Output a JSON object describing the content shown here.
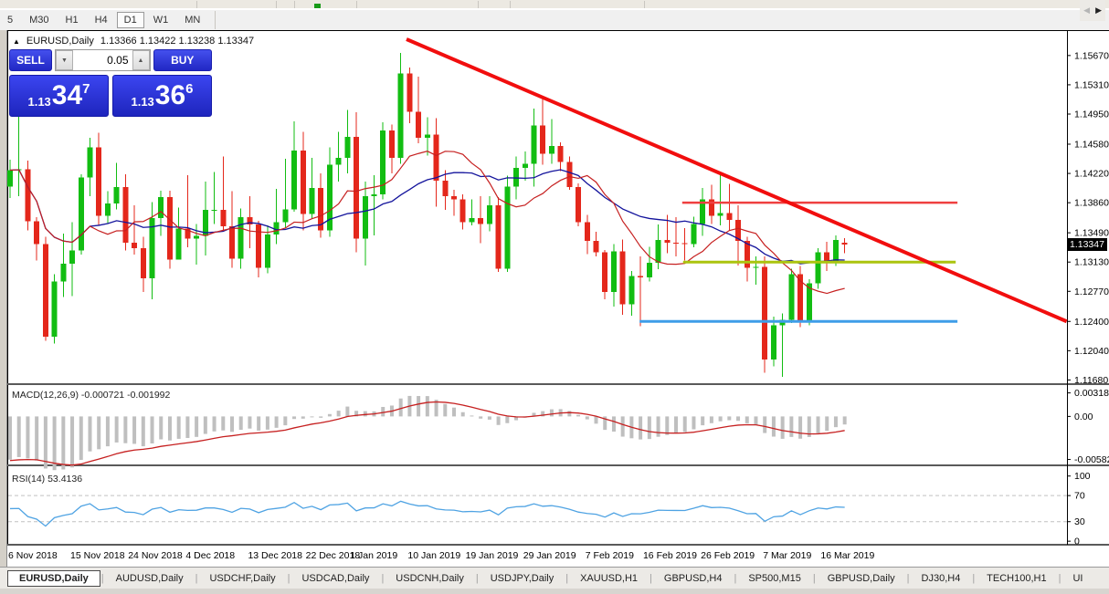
{
  "toolbar": {
    "timeframes": [
      "5",
      "M30",
      "H1",
      "H4",
      "D1",
      "W1",
      "MN"
    ],
    "active_timeframe": "D1"
  },
  "header": {
    "collapse_icon": "▲",
    "symbol": "EURUSD,Daily",
    "ohlc_text": "1.13366 1.13422 1.13238 1.13347"
  },
  "trade_panel": {
    "sell_label": "SELL",
    "buy_label": "BUY",
    "volume": "0.05",
    "spinner_down": "▼",
    "spinner_up": "▲",
    "sell_price": {
      "prefix": "1.13",
      "big": "34",
      "sup": "7"
    },
    "buy_price": {
      "prefix": "1.13",
      "big": "36",
      "sup": "6"
    }
  },
  "price_axis": {
    "ticks": [
      "1.15670",
      "1.15310",
      "1.14950",
      "1.14580",
      "1.14220",
      "1.13860",
      "1.13490",
      "1.13130",
      "1.12770",
      "1.12400",
      "1.12040",
      "1.11680"
    ],
    "tick_values": [
      1.1567,
      1.1531,
      1.1495,
      1.1458,
      1.1422,
      1.1386,
      1.1349,
      1.1313,
      1.1277,
      1.124,
      1.1204,
      1.1168
    ],
    "current_label": "1.13347",
    "current_value": 1.13347
  },
  "date_axis": {
    "labels": [
      {
        "text": "6 Nov 2018",
        "index": 0
      },
      {
        "text": "15 Nov 2018",
        "index": 7
      },
      {
        "text": "24 Nov 2018",
        "index": 13.5
      },
      {
        "text": "4 Dec 2018",
        "index": 20
      },
      {
        "text": "13 Dec 2018",
        "index": 27
      },
      {
        "text": "22 Dec 2018",
        "index": 33.5
      },
      {
        "text": "1 Jan 2019",
        "index": 38.5
      },
      {
        "text": "10 Jan 2019",
        "index": 45
      },
      {
        "text": "19 Jan 2019",
        "index": 51.5
      },
      {
        "text": "29 Jan 2019",
        "index": 58
      },
      {
        "text": "7 Feb 2019",
        "index": 65
      },
      {
        "text": "16 Feb 2019",
        "index": 71.5
      },
      {
        "text": "26 Feb 2019",
        "index": 78
      },
      {
        "text": "7 Mar 2019",
        "index": 85
      },
      {
        "text": "16 Mar 2019",
        "index": 91.5
      }
    ]
  },
  "indicators": {
    "macd": {
      "label": "MACD(12,26,9) -0.000721 -0.001992",
      "fast": 12,
      "slow": 26,
      "signal": 9,
      "value": -0.000721,
      "signal_value": -0.001992,
      "axis_ticks": [
        {
          "text": "0.003185",
          "value": 0.003185
        },
        {
          "text": "0.00",
          "value": 0
        },
        {
          "text": "-0.005827",
          "value": -0.005827
        }
      ]
    },
    "rsi": {
      "label": "RSI(14) 53.4136",
      "period": 14,
      "current": 53.4136,
      "levels": [
        70,
        30
      ],
      "axis_ticks": [
        {
          "text": "100",
          "value": 100
        },
        {
          "text": "70",
          "value": 70
        },
        {
          "text": "30",
          "value": 30
        },
        {
          "text": "0",
          "value": 0
        }
      ]
    },
    "ma_fast_period": 10,
    "ma_slow_period": 21
  },
  "objects": {
    "trendline": {
      "index1": 44.65,
      "price1": 1.1587,
      "index2": 119.0,
      "price2": 1.124
    },
    "hlines": [
      {
        "price": 1.1386,
        "index1": 75.7,
        "index2": 106.7,
        "color_key": "hline_red"
      },
      {
        "price": 1.1313,
        "index1": 75.8,
        "index2": 106.5,
        "color_key": "hline_olive"
      },
      {
        "price": 1.124,
        "index1": 70.9,
        "index2": 106.7,
        "color_key": "hline_blue"
      }
    ]
  },
  "chart_data": {
    "type": "candlestick",
    "symbol": "EURUSD",
    "timeframe": "Daily",
    "candles": [
      [
        1.1406,
        1.1439,
        1.1392,
        1.1426
      ],
      [
        1.1426,
        1.15,
        1.1394,
        1.1427
      ],
      [
        1.1427,
        1.1438,
        1.1352,
        1.1363
      ],
      [
        1.1363,
        1.1368,
        1.1315,
        1.1335
      ],
      [
        1.1335,
        1.1344,
        1.1216,
        1.1221
      ],
      [
        1.1221,
        1.1298,
        1.1213,
        1.1289
      ],
      [
        1.1289,
        1.1348,
        1.127,
        1.1311
      ],
      [
        1.1311,
        1.1362,
        1.1271,
        1.1327
      ],
      [
        1.1327,
        1.1421,
        1.1322,
        1.1417
      ],
      [
        1.1417,
        1.1466,
        1.1394,
        1.1454
      ],
      [
        1.1454,
        1.1472,
        1.1358,
        1.137
      ],
      [
        1.137,
        1.14,
        1.1361,
        1.1385
      ],
      [
        1.1385,
        1.1435,
        1.1378,
        1.1405
      ],
      [
        1.1405,
        1.1421,
        1.1327,
        1.1337
      ],
      [
        1.1337,
        1.1383,
        1.1322,
        1.133
      ],
      [
        1.133,
        1.1344,
        1.1276,
        1.1293
      ],
      [
        1.1293,
        1.1387,
        1.1267,
        1.1367
      ],
      [
        1.1367,
        1.1401,
        1.1345,
        1.1393
      ],
      [
        1.1393,
        1.1401,
        1.1305,
        1.1316
      ],
      [
        1.1316,
        1.138,
        1.1316,
        1.1354
      ],
      [
        1.1354,
        1.142,
        1.1331,
        1.1342
      ],
      [
        1.1342,
        1.136,
        1.131,
        1.1345
      ],
      [
        1.1345,
        1.1412,
        1.1321,
        1.1377
      ],
      [
        1.1377,
        1.1424,
        1.136,
        1.1377
      ],
      [
        1.1377,
        1.1443,
        1.1351,
        1.1357
      ],
      [
        1.1357,
        1.14,
        1.1306,
        1.1317
      ],
      [
        1.1317,
        1.1379,
        1.1305,
        1.1368
      ],
      [
        1.1368,
        1.1394,
        1.133,
        1.1359
      ],
      [
        1.1359,
        1.1364,
        1.1294,
        1.1306
      ],
      [
        1.1306,
        1.1358,
        1.1299,
        1.1347
      ],
      [
        1.1347,
        1.1403,
        1.1335,
        1.1362
      ],
      [
        1.1362,
        1.144,
        1.1355,
        1.1378
      ],
      [
        1.1378,
        1.1486,
        1.1375,
        1.145
      ],
      [
        1.145,
        1.1473,
        1.1352,
        1.1372
      ],
      [
        1.1372,
        1.1441,
        1.1366,
        1.1404
      ],
      [
        1.1404,
        1.1422,
        1.1343,
        1.1352
      ],
      [
        1.1352,
        1.1454,
        1.1344,
        1.1433
      ],
      [
        1.1433,
        1.1473,
        1.1412,
        1.1441
      ],
      [
        1.1441,
        1.15,
        1.1422,
        1.1467
      ],
      [
        1.1467,
        1.1497,
        1.1325,
        1.1342
      ],
      [
        1.1342,
        1.1412,
        1.1309,
        1.1394
      ],
      [
        1.1394,
        1.142,
        1.1346,
        1.1396
      ],
      [
        1.1396,
        1.1485,
        1.139,
        1.1475
      ],
      [
        1.1475,
        1.1482,
        1.1422,
        1.1441
      ],
      [
        1.1441,
        1.157,
        1.1434,
        1.1545
      ],
      [
        1.1545,
        1.1552,
        1.1484,
        1.1498
      ],
      [
        1.1498,
        1.1541,
        1.1459,
        1.1466
      ],
      [
        1.1466,
        1.1491,
        1.1444,
        1.147
      ],
      [
        1.147,
        1.149,
        1.1381,
        1.1413
      ],
      [
        1.1413,
        1.1426,
        1.1377,
        1.1394
      ],
      [
        1.1394,
        1.1402,
        1.137,
        1.139
      ],
      [
        1.139,
        1.1396,
        1.1353,
        1.1362
      ],
      [
        1.1362,
        1.139,
        1.1358,
        1.1367
      ],
      [
        1.1367,
        1.1394,
        1.1336,
        1.136
      ],
      [
        1.136,
        1.1394,
        1.1351,
        1.1383
      ],
      [
        1.1383,
        1.1393,
        1.1301,
        1.1305
      ],
      [
        1.1305,
        1.1419,
        1.1301,
        1.1406
      ],
      [
        1.1406,
        1.1443,
        1.139,
        1.1429
      ],
      [
        1.1429,
        1.1449,
        1.1413,
        1.1434
      ],
      [
        1.1434,
        1.1502,
        1.1406,
        1.1481
      ],
      [
        1.1481,
        1.1515,
        1.1433,
        1.1446
      ],
      [
        1.1446,
        1.1489,
        1.1434,
        1.1456
      ],
      [
        1.1456,
        1.146,
        1.1425,
        1.1436
      ],
      [
        1.1436,
        1.1443,
        1.1402,
        1.1405
      ],
      [
        1.1405,
        1.141,
        1.1357,
        1.1362
      ],
      [
        1.1362,
        1.1371,
        1.1323,
        1.1339
      ],
      [
        1.1339,
        1.135,
        1.132,
        1.1325
      ],
      [
        1.1325,
        1.1328,
        1.1267,
        1.1276
      ],
      [
        1.1276,
        1.1335,
        1.1258,
        1.1326
      ],
      [
        1.1326,
        1.1341,
        1.1248,
        1.1261
      ],
      [
        1.1261,
        1.1302,
        1.1247,
        1.1296
      ],
      [
        1.1296,
        1.132,
        1.1234,
        1.1294
      ],
      [
        1.1294,
        1.1332,
        1.1289,
        1.1312
      ],
      [
        1.1312,
        1.1359,
        1.1304,
        1.134
      ],
      [
        1.134,
        1.1371,
        1.1324,
        1.1337
      ],
      [
        1.1337,
        1.1368,
        1.132,
        1.1336
      ],
      [
        1.1336,
        1.1355,
        1.1315,
        1.1335
      ],
      [
        1.1335,
        1.1369,
        1.1331,
        1.136
      ],
      [
        1.136,
        1.1404,
        1.1345,
        1.139
      ],
      [
        1.139,
        1.1408,
        1.136,
        1.137
      ],
      [
        1.137,
        1.142,
        1.1358,
        1.1373
      ],
      [
        1.1373,
        1.1409,
        1.1352,
        1.1365
      ],
      [
        1.1365,
        1.1383,
        1.1309,
        1.1339
      ],
      [
        1.1339,
        1.1344,
        1.1289,
        1.1306
      ],
      [
        1.1306,
        1.132,
        1.1285,
        1.1307
      ],
      [
        1.1307,
        1.132,
        1.1177,
        1.1193
      ],
      [
        1.1193,
        1.1246,
        1.1185,
        1.1235
      ],
      [
        1.1235,
        1.125,
        1.1172,
        1.1242
      ],
      [
        1.1242,
        1.1305,
        1.1238,
        1.1298
      ],
      [
        1.1298,
        1.1308,
        1.1233,
        1.124
      ],
      [
        1.124,
        1.1292,
        1.1235,
        1.1287
      ],
      [
        1.1287,
        1.133,
        1.128,
        1.1325
      ],
      [
        1.1325,
        1.1338,
        1.1302,
        1.1312
      ],
      [
        1.1312,
        1.1346,
        1.1308,
        1.134
      ],
      [
        1.13366,
        1.13422,
        1.13238,
        1.13347
      ]
    ]
  },
  "tab_bar": {
    "tabs": [
      {
        "label": "EURUSD,Daily",
        "active": true
      },
      {
        "label": "AUDUSD,Daily",
        "active": false
      },
      {
        "label": "USDCHF,Daily",
        "active": false
      },
      {
        "label": "USDCAD,Daily",
        "active": false
      },
      {
        "label": "USDCNH,Daily",
        "active": false
      },
      {
        "label": "USDJPY,Daily",
        "active": false
      },
      {
        "label": "XAUUSD,H1",
        "active": false
      },
      {
        "label": "GBPUSD,H4",
        "active": false
      },
      {
        "label": "SP500,M15",
        "active": false
      },
      {
        "label": "GBPUSD,Daily",
        "active": false
      },
      {
        "label": "DJ30,H4",
        "active": false
      },
      {
        "label": "TECH100,H1",
        "active": false
      },
      {
        "label": "UI",
        "active": false
      }
    ],
    "scroll_left_icon": "◀",
    "scroll_right_icon": "▶"
  },
  "colors": {
    "bull": "#12bd12",
    "bear": "#e4271b",
    "ma_fast": "#c62020",
    "ma_slow": "#14149c",
    "trendline": "#f10e0e",
    "hline_red": "#ef4040",
    "hline_olive": "#abc40f",
    "hline_blue": "#3e9de8",
    "macd_hist": "#bfbfbf",
    "macd_signal": "#c62020",
    "rsi_line": "#4fa3e3",
    "price_tag_bg": "#000000",
    "panel_blue": "#2a30d8"
  }
}
